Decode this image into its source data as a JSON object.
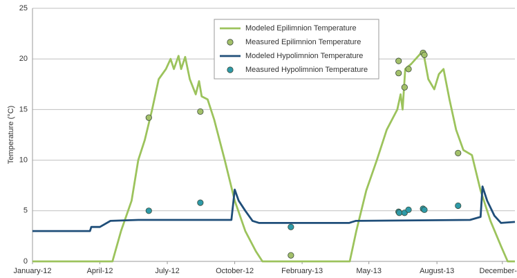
{
  "chart_data": {
    "type": "line",
    "y_label": "Temperature (°C)",
    "xlim": [
      0,
      730
    ],
    "xticks": [
      {
        "value": 0,
        "label": "January-12"
      },
      {
        "value": 102,
        "label": "April-12"
      },
      {
        "value": 204,
        "label": "July-12"
      },
      {
        "value": 306,
        "label": "October-12"
      },
      {
        "value": 408,
        "label": "February-13"
      },
      {
        "value": 509,
        "label": "May-13"
      },
      {
        "value": 612,
        "label": "August-13"
      },
      {
        "value": 711,
        "label": "December-13"
      }
    ],
    "ylim": [
      0,
      25
    ],
    "yticks": [
      0,
      5,
      10,
      15,
      20,
      25
    ],
    "grid": true,
    "series": [
      {
        "name": "Modeled Epilimnion Temperature",
        "type": "line",
        "color": "#9cc35c",
        "x": [
          0,
          121,
          134,
          150,
          160,
          170,
          181,
          191,
          202,
          209,
          214,
          221,
          225,
          231,
          238,
          247,
          252,
          256,
          265,
          275,
          291,
          306,
          322,
          338,
          348,
          480,
          490,
          505,
          521,
          536,
          552,
          557,
          560,
          564,
          573,
          584,
          591,
          599,
          608,
          615,
          622,
          631,
          641,
          652,
          665,
          678,
          693,
          709,
          719,
          730
        ],
        "values": [
          0,
          0,
          3,
          6,
          10,
          12,
          15,
          18,
          19,
          20,
          19,
          20.3,
          19,
          20.2,
          18,
          16.5,
          17.8,
          16.3,
          16,
          14,
          10,
          6,
          3,
          1,
          0,
          0,
          3,
          7,
          10,
          13,
          15,
          16.5,
          15,
          19,
          19.5,
          20.3,
          20.8,
          18,
          17,
          18.5,
          19,
          16,
          13,
          11,
          10.5,
          7,
          4,
          1.5,
          0,
          0
        ]
      },
      {
        "name": "Measured Epilimnion Temperature",
        "type": "scatter",
        "color": "#a3c06a",
        "x": [
          176,
          254,
          391,
          554,
          554,
          563,
          569,
          591,
          593,
          644
        ],
        "values": [
          14.2,
          14.8,
          0.6,
          19.8,
          18.6,
          17.2,
          19,
          20.6,
          20.4,
          10.7
        ]
      },
      {
        "name": "Modeled Hypolimnion Temperature",
        "type": "line",
        "color": "#1f4e79",
        "x": [
          0,
          87,
          89,
          102,
          118,
          160,
          301,
          306,
          312,
          322,
          333,
          343,
          479,
          489,
          662,
          678,
          681,
          688,
          699,
          709,
          730
        ],
        "values": [
          3,
          3,
          3.4,
          3.4,
          4,
          4.1,
          4.1,
          7.1,
          6,
          5,
          4,
          3.8,
          3.8,
          4,
          4.1,
          4.4,
          7.4,
          6,
          4.5,
          3.8,
          3.9
        ]
      },
      {
        "name": "Measured Hypolimnion Temperature",
        "type": "scatter",
        "color": "#2e9aa8",
        "x": [
          176,
          254,
          391,
          554,
          555,
          563,
          569,
          591,
          593,
          644
        ],
        "values": [
          5.0,
          5.8,
          3.4,
          4.9,
          4.8,
          4.8,
          5.1,
          5.2,
          5.1,
          5.5
        ]
      }
    ]
  }
}
